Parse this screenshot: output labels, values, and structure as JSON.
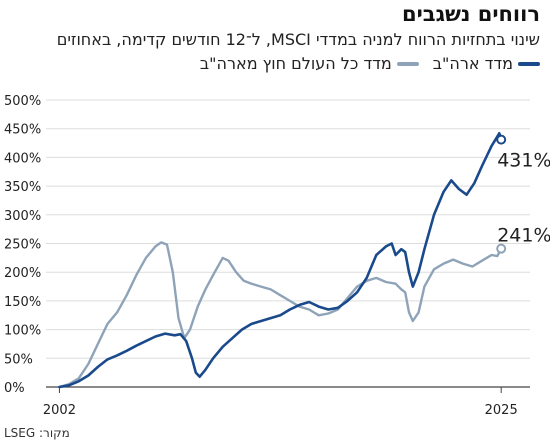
{
  "title": "רווחים נשגבים",
  "subtitle": "שינוי בתחזיות הרווח למניה במדדי MSCI, ל־12 חודשים קדימה, באחוזים",
  "source": "מקור: LSEG",
  "colors": {
    "us": "#1a4a8c",
    "world": "#8fa3b8",
    "grid": "#dddddd",
    "axis": "#444444"
  },
  "chart_data": {
    "type": "line",
    "title": "רווחים נשגבים",
    "subtitle": "שינוי בתחזיות הרווח למניה במדדי MSCI, ל־12 חודשים קדימה, באחוזים",
    "xlabel": "",
    "ylabel": "",
    "x_range": [
      2001.3,
      2026.5
    ],
    "ylim": [
      0,
      500
    ],
    "y_ticks": [
      0,
      50,
      100,
      150,
      200,
      250,
      300,
      350,
      400,
      450,
      500
    ],
    "y_tick_labels": [
      "0%",
      "50%",
      "100%",
      "150%",
      "200%",
      "250%",
      "300%",
      "350%",
      "400%",
      "450%",
      "500%"
    ],
    "x_ticks": [
      2002,
      2025
    ],
    "x_tick_labels": [
      "2002",
      "2025"
    ],
    "grid": true,
    "legend_position": "top-right",
    "series": [
      {
        "name": "מדד ארה\"ב",
        "key": "us",
        "end_label": "431%",
        "points": [
          [
            2002.0,
            0
          ],
          [
            2002.5,
            3
          ],
          [
            2003.0,
            10
          ],
          [
            2003.5,
            20
          ],
          [
            2004.0,
            35
          ],
          [
            2004.5,
            48
          ],
          [
            2005.0,
            55
          ],
          [
            2005.5,
            63
          ],
          [
            2006.0,
            72
          ],
          [
            2006.5,
            80
          ],
          [
            2007.0,
            88
          ],
          [
            2007.5,
            93
          ],
          [
            2008.0,
            90
          ],
          [
            2008.3,
            92
          ],
          [
            2008.6,
            80
          ],
          [
            2008.9,
            50
          ],
          [
            2009.1,
            25
          ],
          [
            2009.3,
            18
          ],
          [
            2009.6,
            30
          ],
          [
            2010.0,
            50
          ],
          [
            2010.5,
            70
          ],
          [
            2011.0,
            85
          ],
          [
            2011.5,
            100
          ],
          [
            2012.0,
            110
          ],
          [
            2012.5,
            115
          ],
          [
            2013.0,
            120
          ],
          [
            2013.5,
            125
          ],
          [
            2014.0,
            135
          ],
          [
            2014.5,
            143
          ],
          [
            2015.0,
            148
          ],
          [
            2015.5,
            140
          ],
          [
            2016.0,
            135
          ],
          [
            2016.5,
            138
          ],
          [
            2017.0,
            150
          ],
          [
            2017.5,
            165
          ],
          [
            2018.0,
            190
          ],
          [
            2018.5,
            230
          ],
          [
            2019.0,
            245
          ],
          [
            2019.3,
            250
          ],
          [
            2019.5,
            230
          ],
          [
            2019.8,
            240
          ],
          [
            2020.0,
            235
          ],
          [
            2020.2,
            200
          ],
          [
            2020.4,
            175
          ],
          [
            2020.7,
            200
          ],
          [
            2021.0,
            240
          ],
          [
            2021.5,
            300
          ],
          [
            2022.0,
            340
          ],
          [
            2022.4,
            360
          ],
          [
            2022.8,
            345
          ],
          [
            2023.2,
            335
          ],
          [
            2023.6,
            355
          ],
          [
            2024.0,
            385
          ],
          [
            2024.5,
            420
          ],
          [
            2024.9,
            442
          ],
          [
            2025.0,
            431
          ]
        ]
      },
      {
        "name": "מדד כל העולם חוץ מארה\"ב",
        "key": "world",
        "end_label": "241%",
        "points": [
          [
            2002.0,
            0
          ],
          [
            2002.5,
            5
          ],
          [
            2003.0,
            15
          ],
          [
            2003.5,
            40
          ],
          [
            2004.0,
            75
          ],
          [
            2004.5,
            110
          ],
          [
            2005.0,
            130
          ],
          [
            2005.5,
            160
          ],
          [
            2006.0,
            195
          ],
          [
            2006.5,
            225
          ],
          [
            2007.0,
            245
          ],
          [
            2007.3,
            252
          ],
          [
            2007.6,
            248
          ],
          [
            2007.9,
            200
          ],
          [
            2008.2,
            120
          ],
          [
            2008.5,
            85
          ],
          [
            2008.8,
            100
          ],
          [
            2009.2,
            140
          ],
          [
            2009.6,
            170
          ],
          [
            2010.0,
            195
          ],
          [
            2010.5,
            225
          ],
          [
            2010.8,
            220
          ],
          [
            2011.2,
            200
          ],
          [
            2011.6,
            185
          ],
          [
            2012.0,
            180
          ],
          [
            2012.5,
            175
          ],
          [
            2013.0,
            170
          ],
          [
            2013.5,
            160
          ],
          [
            2014.0,
            150
          ],
          [
            2014.5,
            140
          ],
          [
            2015.0,
            135
          ],
          [
            2015.5,
            125
          ],
          [
            2016.0,
            128
          ],
          [
            2016.5,
            135
          ],
          [
            2017.0,
            155
          ],
          [
            2017.5,
            175
          ],
          [
            2018.0,
            185
          ],
          [
            2018.5,
            190
          ],
          [
            2019.0,
            183
          ],
          [
            2019.5,
            180
          ],
          [
            2019.8,
            170
          ],
          [
            2020.0,
            165
          ],
          [
            2020.2,
            130
          ],
          [
            2020.4,
            115
          ],
          [
            2020.7,
            130
          ],
          [
            2021.0,
            175
          ],
          [
            2021.5,
            205
          ],
          [
            2022.0,
            215
          ],
          [
            2022.5,
            222
          ],
          [
            2023.0,
            215
          ],
          [
            2023.5,
            210
          ],
          [
            2024.0,
            220
          ],
          [
            2024.5,
            230
          ],
          [
            2024.8,
            228
          ],
          [
            2025.0,
            241
          ]
        ]
      }
    ]
  }
}
